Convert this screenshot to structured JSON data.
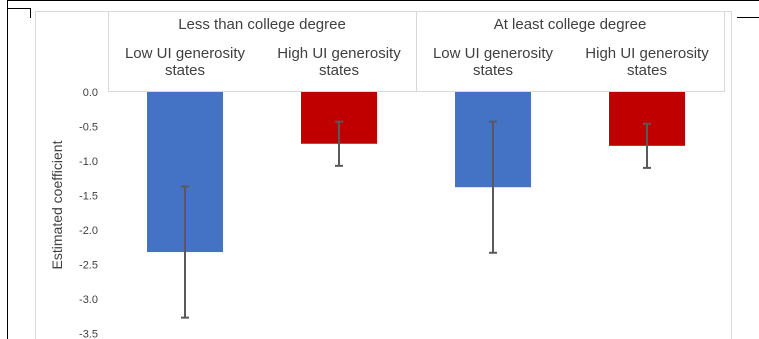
{
  "chart_data": {
    "type": "bar",
    "groups": [
      "Less than college degree",
      "At least college degree"
    ],
    "categories": [
      {
        "group": "Less than college degree",
        "lines": [
          "Low UI generosity",
          "states"
        ]
      },
      {
        "group": "Less than college degree",
        "lines": [
          "High UI generosity",
          "states"
        ]
      },
      {
        "group": "At least college degree",
        "lines": [
          "Low UI generosity",
          "states"
        ]
      },
      {
        "group": "At least college degree",
        "lines": [
          "High UI generosity",
          "states"
        ]
      }
    ],
    "values": [
      -2.32,
      -0.75,
      -1.38,
      -0.78
    ],
    "error_low": [
      -3.27,
      -1.07,
      -2.33,
      -1.1
    ],
    "error_high": [
      -1.37,
      -0.43,
      -0.43,
      -0.46
    ],
    "bar_colors": [
      "#4472C4",
      "#C00000",
      "#4472C4",
      "#C00000"
    ],
    "error_bar_color": "#595959",
    "ylabel": "Estimated coefficient",
    "yticks": [
      0.0,
      -0.5,
      -1.0,
      -1.5,
      -2.0,
      -2.5,
      -3.0,
      -3.5
    ],
    "ylim": [
      -3.5,
      0
    ],
    "grid": false,
    "legend": "none"
  }
}
